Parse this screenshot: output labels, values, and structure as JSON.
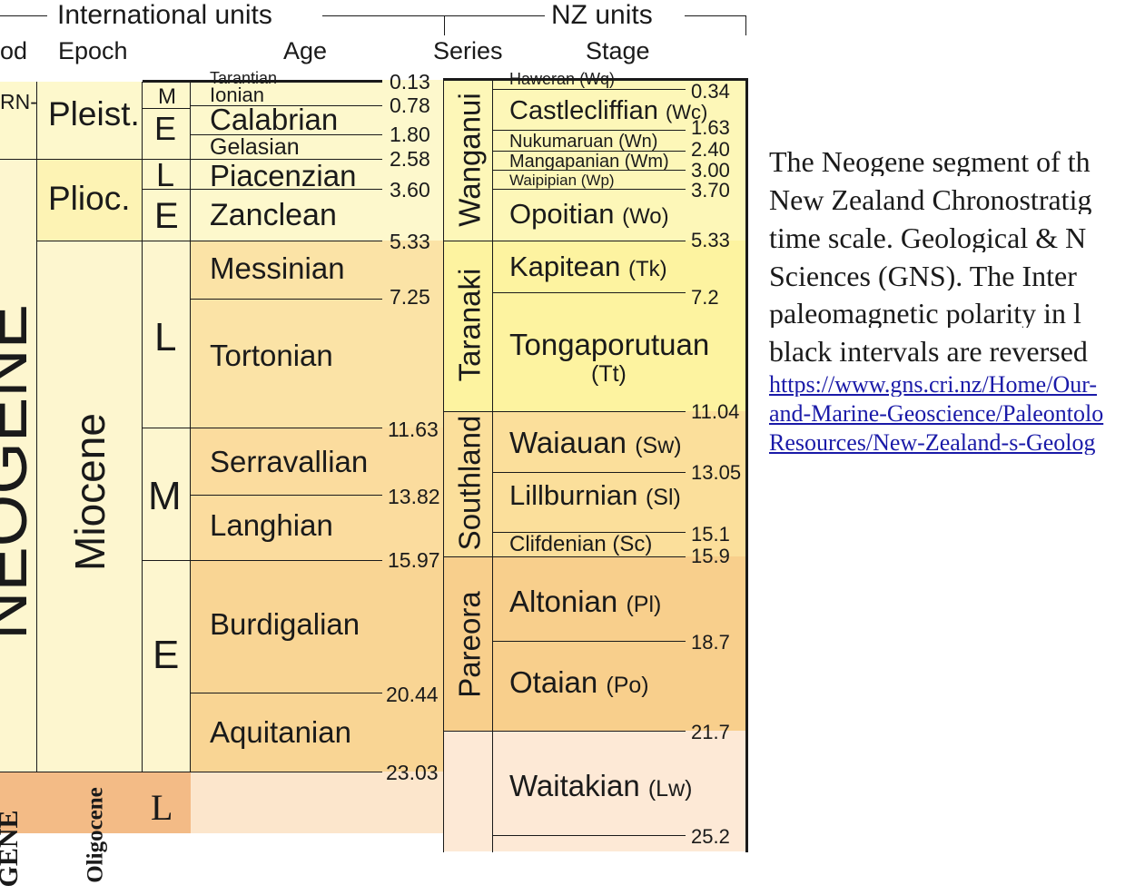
{
  "headers": {
    "international": "International units",
    "nz": "NZ units",
    "period": "od",
    "epoch": "Epoch",
    "age": "Age",
    "series": "Series",
    "stage": "Stage"
  },
  "periods": {
    "quaternary_fragment": "RN-",
    "neogene": "NEOGENE",
    "paleogene": "GENE"
  },
  "epochs": {
    "pleistocene": "Pleist.",
    "pliocene": "Plioc.",
    "miocene": "Miocene",
    "oligocene": "Oligocene"
  },
  "subepochs": [
    "M",
    "E",
    "L",
    "E",
    "L",
    "M",
    "E",
    "L"
  ],
  "ages": [
    "Tarantian",
    "Ionian",
    "Calabrian",
    "Gelasian",
    "Piacenzian",
    "Zanclean",
    "Messinian",
    "Tortonian",
    "Serravallian",
    "Langhian",
    "Burdigalian",
    "Aquitanian"
  ],
  "age_boundaries": [
    "0.13",
    "0.78",
    "1.80",
    "2.58",
    "3.60",
    "5.33",
    "7.25",
    "11.63",
    "13.82",
    "15.97",
    "20.44",
    "23.03"
  ],
  "series": [
    "Wanganui",
    "Taranaki",
    "Southland",
    "Pareora"
  ],
  "stages": [
    {
      "name": "Haweran",
      "code": "(Wq)"
    },
    {
      "name": "Castlecliffian",
      "code": "(Wc)"
    },
    {
      "name": "Nukumaruan",
      "code": "(Wn)"
    },
    {
      "name": "Mangapanian",
      "code": "(Wm)"
    },
    {
      "name": "Waipipian",
      "code": "(Wp)"
    },
    {
      "name": "Opoitian",
      "code": "(Wo)"
    },
    {
      "name": "Kapitean",
      "code": "(Tk)"
    },
    {
      "name": "Tongaporutuan",
      "code": "(Tt)"
    },
    {
      "name": "Waiauan",
      "code": "(Sw)"
    },
    {
      "name": "Lillburnian",
      "code": "(Sl)"
    },
    {
      "name": "Clifdenian",
      "code": "(Sc)"
    },
    {
      "name": "Altonian",
      "code": "(Pl)"
    },
    {
      "name": "Otaian",
      "code": "(Po)"
    },
    {
      "name": "Waitakian",
      "code": "(Lw)"
    }
  ],
  "stage_boundaries": [
    "0.34",
    "1.63",
    "2.40",
    "3.00",
    "3.70",
    "5.33",
    "7.2",
    "11.04",
    "13.05",
    "15.1",
    "15.9",
    "18.7",
    "21.7",
    "25.2"
  ],
  "caption": {
    "lines": [
      "The Neogene segment of th",
      "New Zealand Chronostratig",
      "time scale. Geological & N",
      "Sciences (GNS).  The Inter",
      "paleomagnetic polarity in l",
      "black intervals are reversed"
    ],
    "link_lines": [
      "https://www.gns.cri.nz/Home/Our-",
      "and-Marine-Geoscience/Paleontolo",
      "Resources/New-Zealand-s-Geolog"
    ]
  },
  "colors": {
    "quaternary": "#fdf8cc",
    "pliocene": "#fdf3b4",
    "miocene_epoch": "#fdf6cf",
    "miocene_late": "#fbe3a6",
    "miocene_mid": "#fbdc9e",
    "miocene_early": "#f9d594",
    "paleogene": "#f3bb86",
    "oligocene_light": "#fce6cc",
    "nz_wanganui": "#fdf7b8",
    "nz_taranaki": "#fdf3a0",
    "nz_southland": "#fbdf9b",
    "nz_pareora": "#f8cf8c",
    "nz_landon": "#fde9d6",
    "link": "#1a1aa8"
  }
}
